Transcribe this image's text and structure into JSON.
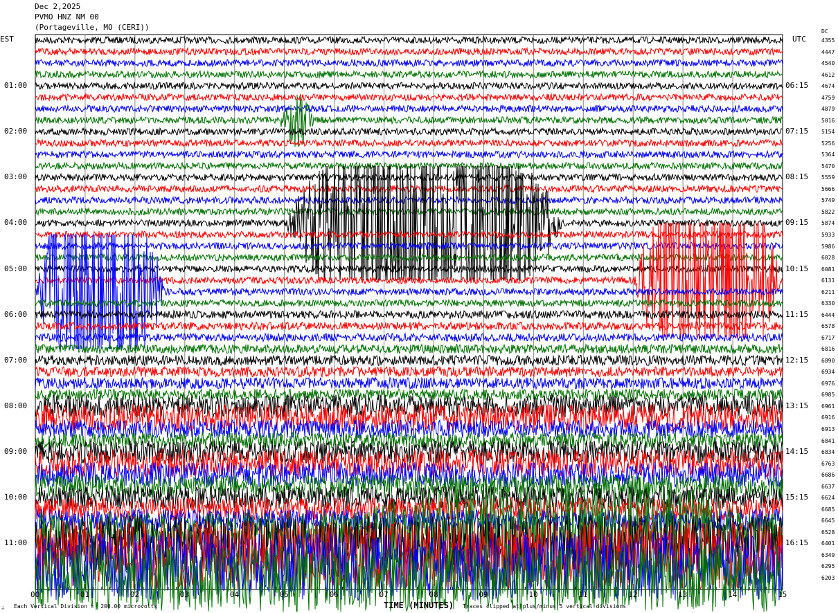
{
  "header": {
    "date": "Dec 2,2025",
    "station": "PVMO HNZ NM 00",
    "location": "(Portageville, MO (CERI))"
  },
  "left_axis_title": "EST",
  "right_axis_title": "UTC",
  "dc_label": "DC",
  "chart_data": {
    "type": "line",
    "xlabel": "TIME (MINUTES)",
    "xlim": [
      0,
      15
    ],
    "x_ticks": [
      "00",
      "01",
      "02",
      "03",
      "04",
      "05",
      "06",
      "07",
      "08",
      "09",
      "10",
      "11",
      "12",
      "13",
      "14",
      "15"
    ],
    "est_labels": [
      "01:00",
      "02:00",
      "03:00",
      "04:00",
      "05:00",
      "06:00",
      "07:00",
      "08:00",
      "09:00",
      "10:00",
      "11:00"
    ],
    "utc_labels": [
      "06:15",
      "07:15",
      "08:15",
      "09:15",
      "10:15",
      "11:15",
      "12:15",
      "13:15",
      "14:15",
      "15:15",
      "16:15"
    ],
    "trace_colors": [
      "#000000",
      "#ff0000",
      "#0000ff",
      "#007000"
    ],
    "dc_offsets": [
      4355,
      4447,
      4540,
      4612,
      4674,
      4759,
      4879,
      5016,
      5154,
      5256,
      5364,
      5470,
      5559,
      5666,
      5749,
      5822,
      5874,
      5933,
      5986,
      6028,
      6081,
      6131,
      6211,
      6330,
      6444,
      6578,
      6717,
      6816,
      6890,
      6934,
      6976,
      6985,
      6961,
      6916,
      6913,
      6841,
      6834,
      6763,
      6686,
      6637,
      6624,
      6685,
      6645,
      6528,
      6401,
      6349,
      6295,
      6203
    ],
    "noise_levels": [
      0.3,
      0.3,
      0.3,
      0.3,
      0.3,
      0.3,
      0.3,
      0.3,
      0.3,
      0.3,
      0.3,
      0.3,
      0.3,
      0.3,
      0.3,
      0.3,
      0.3,
      0.3,
      0.3,
      0.3,
      0.3,
      0.3,
      0.3,
      0.3,
      0.35,
      0.35,
      0.35,
      0.4,
      0.45,
      0.45,
      0.5,
      0.5,
      1.0,
      1.2,
      0.8,
      0.7,
      1.0,
      1.2,
      1.1,
      1.0,
      1.0,
      1.0,
      1.0,
      1.8,
      2.5,
      3.0,
      3.0,
      3.0
    ],
    "events": [
      {
        "trace": 7,
        "start_min": 4.9,
        "end_min": 5.6,
        "amplitude_div": 1.2
      },
      {
        "trace": 16,
        "start_min": 5.0,
        "end_min": 10.6,
        "amplitude_div": 5
      },
      {
        "trace": 22,
        "start_min": 0.0,
        "end_min": 2.6,
        "amplitude_div": 5
      },
      {
        "trace": 21,
        "start_min": 12.0,
        "end_min": 15.0,
        "amplitude_div": 5
      },
      {
        "trace": 43,
        "start_min": 6.0,
        "end_min": 15.0,
        "amplitude_div": 2.5
      }
    ],
    "clip_divisions": 5
  },
  "footer": {
    "scale": "Each Vertical Division =  200.00 microvolts",
    "clip_note": "Traces clipped at plus/minus 5 vertical divisions",
    "logo": "∴"
  }
}
